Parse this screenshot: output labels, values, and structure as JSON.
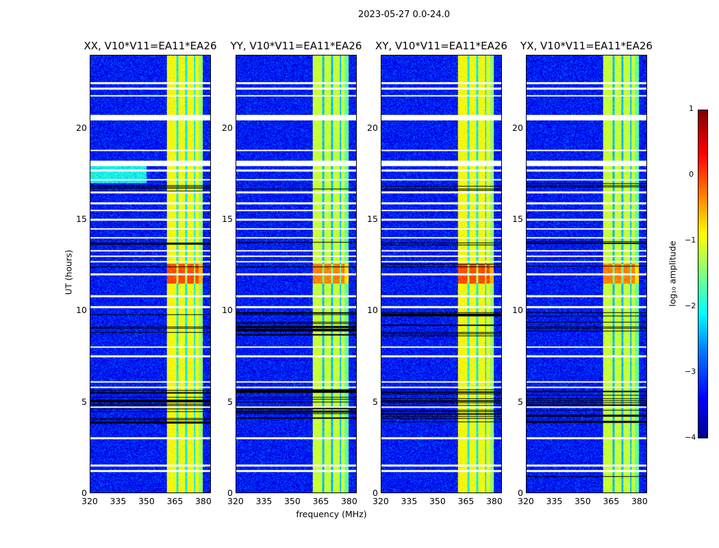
{
  "chart_data": {
    "type": "heatmap",
    "title": "2023-05-27 0.0-24.0",
    "xlabel": "frequency (MHz)",
    "ylabel": "UT (hours)",
    "xlim": [
      320,
      384
    ],
    "ylim": [
      0,
      24
    ],
    "xticks": [
      "320",
      "335",
      "350",
      "365",
      "380"
    ],
    "yticks": [
      "0",
      "5",
      "10",
      "15",
      "20"
    ],
    "panels": [
      {
        "title": "XX, V10*V11=EA11*EA26"
      },
      {
        "title": "YY, V10*V11=EA11*EA26"
      },
      {
        "title": "XY, V10*V11=EA11*EA26"
      },
      {
        "title": "YX, V10*V11=EA11*EA26"
      }
    ],
    "rfi_band_mhz": [
      360.5,
      380
    ],
    "background_log10_amplitude": -3.3,
    "rfi_log10_amplitude": -1,
    "strong_rfi_hours": [
      11.5,
      12.6
    ],
    "flagged_hours": [
      22.5,
      22.2,
      21.8,
      20.6,
      18.8,
      18.1,
      17.7,
      17.2,
      16.5,
      15.9,
      15.5,
      15.0,
      14.5,
      14.0,
      13.3,
      13.0,
      12.7,
      12.0,
      10.8,
      10.2,
      8.0,
      7.5,
      6.1,
      5.8,
      4.7,
      3.0,
      1.5,
      1.2
    ],
    "nodata_hours": [
      [
        16.4,
        17.0
      ],
      [
        13.6,
        13.8
      ],
      [
        12.4,
        12.6
      ],
      [
        9.7,
        9.9
      ],
      [
        8.6,
        9.4
      ],
      [
        3.8,
        5.7
      ],
      [
        0.8,
        0.9
      ]
    ],
    "colorbar": {
      "label": "log₁₀ amplitude",
      "range": [
        -4,
        1
      ],
      "ticks": [
        "1",
        "0",
        "−1",
        "−2",
        "−3",
        "−4"
      ],
      "colormap": "jet"
    }
  }
}
